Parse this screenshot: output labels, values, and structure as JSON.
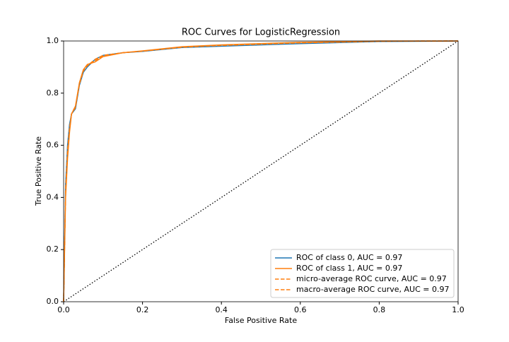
{
  "chart_data": {
    "type": "line",
    "title": "ROC Curves for LogisticRegression",
    "x_label": "False Positive Rate",
    "y_label": "True Positive Rate",
    "x": [
      0,
      0.005,
      0.01,
      0.015,
      0.02,
      0.03,
      0.04,
      0.05,
      0.06,
      0.08,
      0.1,
      0.15,
      0.2,
      0.3,
      0.4,
      0.6,
      0.8,
      1.0
    ],
    "series": [
      {
        "name": "ROC of class 0, AUC = 0.97",
        "color": "#1f77b4",
        "linestyle": "solid",
        "values": [
          0,
          0.45,
          0.6,
          0.68,
          0.72,
          0.74,
          0.83,
          0.88,
          0.9,
          0.93,
          0.945,
          0.955,
          0.96,
          0.975,
          0.98,
          0.99,
          0.998,
          1
        ]
      },
      {
        "name": "ROC of class 1, AUC = 0.97",
        "color": "#ff7f0e",
        "linestyle": "solid",
        "values": [
          0,
          0.4,
          0.55,
          0.65,
          0.72,
          0.75,
          0.84,
          0.89,
          0.91,
          0.92,
          0.94,
          0.955,
          0.962,
          0.978,
          0.985,
          0.995,
          1,
          1
        ]
      },
      {
        "name": "micro-average ROC curve, AUC = 0.97",
        "color": "#ff7f0e",
        "linestyle": "dashed",
        "values": [
          0,
          0.42,
          0.57,
          0.66,
          0.72,
          0.75,
          0.835,
          0.885,
          0.905,
          0.93,
          0.945,
          0.955,
          0.961,
          0.976,
          0.983,
          0.993,
          0.999,
          1
        ]
      },
      {
        "name": "macro-average ROC curve, AUC = 0.97",
        "color": "#ff7f0e",
        "linestyle": "dashed",
        "values": [
          0,
          0.43,
          0.58,
          0.665,
          0.72,
          0.745,
          0.835,
          0.885,
          0.905,
          0.925,
          0.943,
          0.955,
          0.961,
          0.977,
          0.983,
          0.993,
          0.999,
          1
        ]
      }
    ],
    "xlim": [
      0,
      1
    ],
    "ylim": [
      0,
      1
    ],
    "xticks": [
      {
        "value": 0,
        "label": "0.0"
      },
      0.2,
      0.4,
      0.6,
      0.8,
      {
        "value": 1,
        "label": "1.0"
      }
    ],
    "yticks": [
      {
        "value": 0,
        "label": "0.0"
      },
      0.2,
      0.4,
      0.6,
      0.8,
      {
        "value": 1,
        "label": "1.0"
      }
    ],
    "grid": false,
    "legend": "lower right"
  }
}
